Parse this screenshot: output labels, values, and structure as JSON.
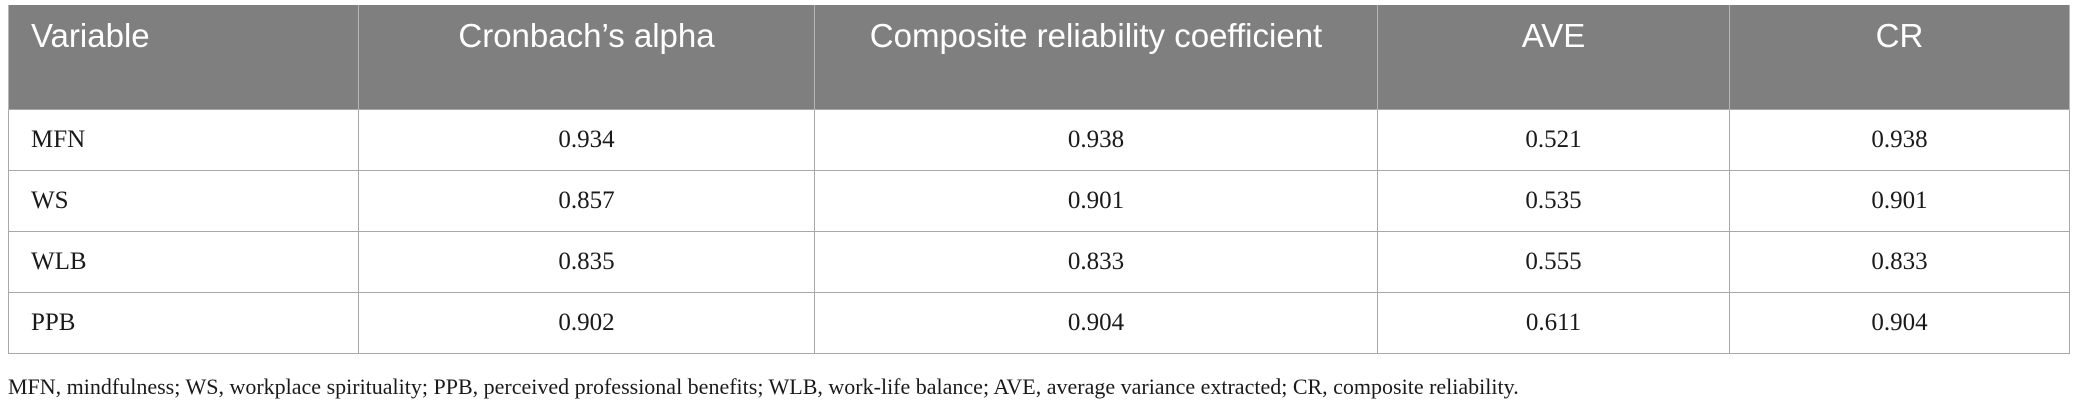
{
  "table": {
    "headers": [
      "Variable",
      "Cronbach’s alpha",
      "Composite reliability coefficient",
      "AVE",
      "CR"
    ],
    "rows": [
      [
        "MFN",
        "0.934",
        "0.938",
        "0.521",
        "0.938"
      ],
      [
        "WS",
        "0.857",
        "0.901",
        "0.535",
        "0.901"
      ],
      [
        "WLB",
        "0.835",
        "0.833",
        "0.555",
        "0.833"
      ],
      [
        "PPB",
        "0.902",
        "0.904",
        "0.611",
        "0.904"
      ]
    ]
  },
  "footnote": "MFN, mindfulness; WS, workplace spirituality; PPB, perceived professional benefits; WLB, work-life balance; AVE, average variance extracted; CR, composite reliability.",
  "colors": {
    "header_bg": "#7f7f7f",
    "header_text": "#ffffff",
    "border": "#a8a8a8"
  }
}
